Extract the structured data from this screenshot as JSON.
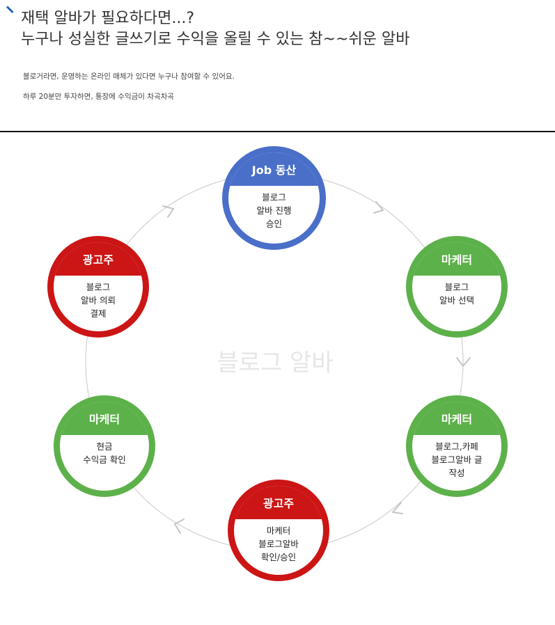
{
  "header": {
    "title_line1": "재택 알바가 필요하다면...?",
    "title_line2": "누구나 성실한 글쓰기로 수익을 올릴 수 있는 참~~쉬운 알바",
    "intro_line1": "블로거라면, 운영하는 온라인 매체가 있다면 누구나 참여할 수 있어요.",
    "intro_line2": "하루 20분만 투자하면, 통장에 수익금이 차곡차곡"
  },
  "diagram": {
    "center_label": "블로그 알바",
    "nodes": [
      {
        "role": "Job 동산",
        "color": "blue",
        "lines": [
          "블로그",
          "알바 진행",
          "승인"
        ]
      },
      {
        "role": "마케터",
        "color": "green",
        "lines": [
          "블로그",
          "알바 선택"
        ]
      },
      {
        "role": "마케터",
        "color": "green",
        "lines": [
          "블로그,카페",
          "블로그알바 글",
          "작성"
        ]
      },
      {
        "role": "광고주",
        "color": "red",
        "lines": [
          "마케터",
          "블로그알바",
          "확인/승인"
        ]
      },
      {
        "role": "마케터",
        "color": "green",
        "lines": [
          "현금",
          "수익금 확인"
        ]
      },
      {
        "role": "광고주",
        "color": "red",
        "lines": [
          "블로그",
          "알바 의뢰",
          "결제"
        ]
      }
    ]
  },
  "colors": {
    "blue": "#4a6fc9",
    "green": "#5db14a",
    "red": "#cc1515",
    "accent": "#1e63b8"
  }
}
